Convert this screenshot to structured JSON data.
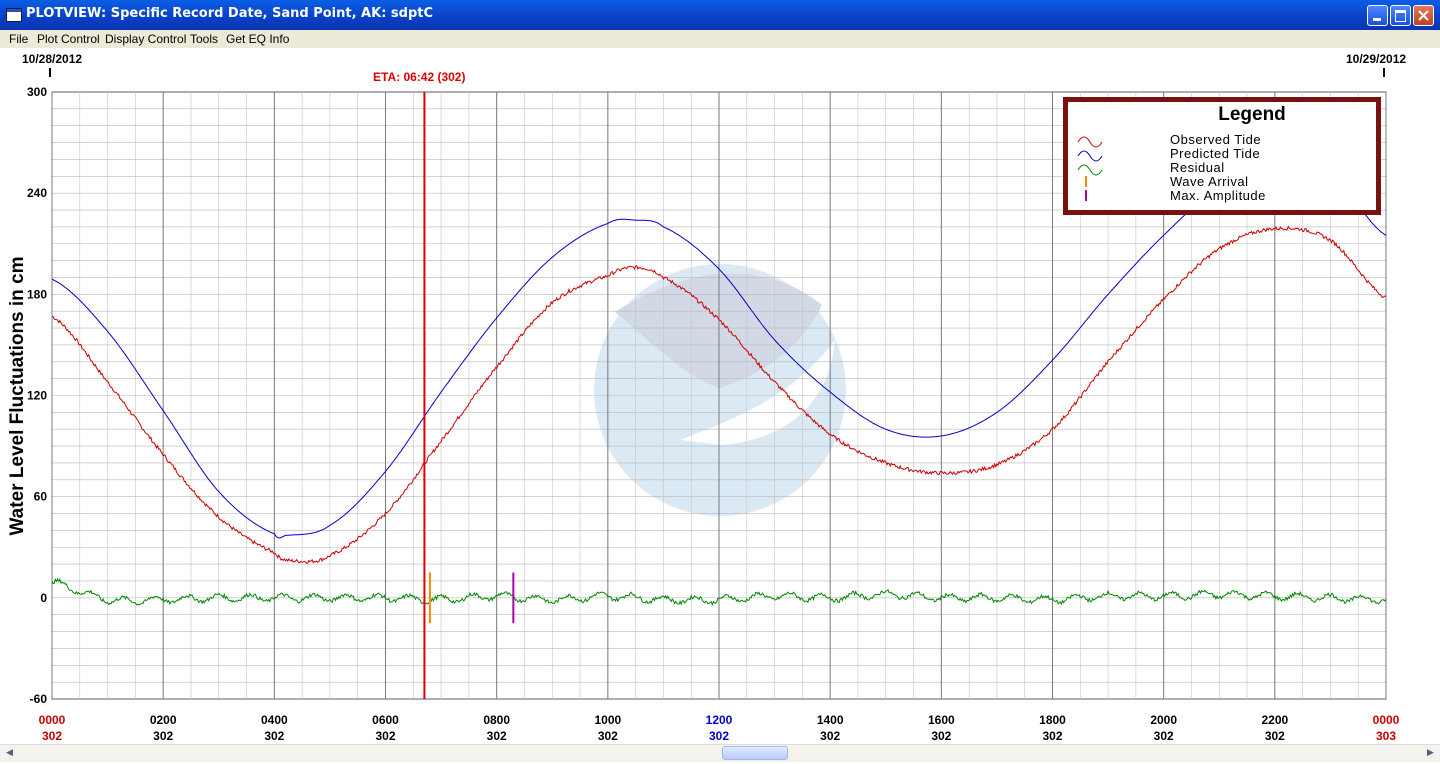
{
  "window": {
    "title": "PLOTVIEW: Specific Record Date, Sand Point, AK: sdptC",
    "colors": {
      "titlebar": "#0a46d6",
      "close": "#d0502c"
    }
  },
  "menu": [
    "File",
    "Plot Control",
    "Display Control",
    "Tools",
    "Get EQ Info"
  ],
  "header": {
    "start_date": "10/28/2012",
    "end_date": "10/29/2012",
    "eta_label": "ETA: 06:42 (302)"
  },
  "legend": {
    "title": "Legend",
    "items": [
      {
        "label": "Observed Tide",
        "color": "#cc0000",
        "icon": "wave-icon"
      },
      {
        "label": "Predicted Tide",
        "color": "#0000cc",
        "icon": "wave-icon"
      },
      {
        "label": "Residual",
        "color": "#008800",
        "icon": "wave-icon"
      },
      {
        "label": "Wave Arrival",
        "color": "#ff8c00",
        "icon": "tick-icon"
      },
      {
        "label": "Max. Amplitude",
        "color": "#aa00aa",
        "icon": "tick-icon"
      }
    ]
  },
  "chart_data": {
    "type": "line",
    "ylabel": "Water Level Fluctuations in cm",
    "ylim": [
      -60,
      300
    ],
    "yticks": [
      300,
      240,
      180,
      120,
      60,
      0,
      -60
    ],
    "xlim_hours": [
      0,
      24
    ],
    "xticks": [
      {
        "hour": "0000",
        "day": "302",
        "color": "#cc0000"
      },
      {
        "hour": "0200",
        "day": "302",
        "color": "#000000"
      },
      {
        "hour": "0400",
        "day": "302",
        "color": "#000000"
      },
      {
        "hour": "0600",
        "day": "302",
        "color": "#000000"
      },
      {
        "hour": "0800",
        "day": "302",
        "color": "#000000"
      },
      {
        "hour": "1000",
        "day": "302",
        "color": "#000000"
      },
      {
        "hour": "1200",
        "day": "302",
        "color": "#0000cc"
      },
      {
        "hour": "1400",
        "day": "302",
        "color": "#000000"
      },
      {
        "hour": "1600",
        "day": "302",
        "color": "#000000"
      },
      {
        "hour": "1800",
        "day": "302",
        "color": "#000000"
      },
      {
        "hour": "2000",
        "day": "302",
        "color": "#000000"
      },
      {
        "hour": "2200",
        "day": "302",
        "color": "#000000"
      },
      {
        "hour": "0000",
        "day": "303",
        "color": "#cc0000"
      }
    ],
    "eta_hour": 6.7,
    "wave_arrival_hour": 6.8,
    "max_amplitude_hour": 8.3,
    "grid": true,
    "legend_position": "top-right",
    "series": [
      {
        "name": "Predicted Tide",
        "color": "#0000cc",
        "x": [
          0,
          1,
          2,
          3,
          4,
          4.2,
          5,
          6,
          7,
          8,
          9,
          10,
          10.5,
          11,
          12,
          13,
          14,
          15,
          16,
          17,
          18,
          19,
          20,
          21,
          22,
          23,
          24
        ],
        "y": [
          189,
          158,
          111,
          63,
          38,
          37,
          43,
          75,
          122,
          166,
          202,
          222,
          224,
          220,
          195,
          153,
          122,
          100,
          96,
          110,
          141,
          180,
          215,
          244,
          259,
          252,
          215
        ]
      },
      {
        "name": "Observed Tide",
        "color": "#cc0000",
        "x": [
          0,
          1,
          2,
          3,
          4,
          4.3,
          5,
          6,
          7,
          8,
          9,
          10,
          10.5,
          11,
          12,
          13,
          14,
          15,
          16,
          17,
          18,
          19,
          20,
          21,
          22,
          23,
          24
        ],
        "y": [
          167,
          128,
          85,
          48,
          27,
          22,
          25,
          50,
          93,
          137,
          175,
          191,
          196,
          190,
          165,
          128,
          97,
          80,
          74,
          79,
          100,
          140,
          177,
          207,
          219,
          212,
          178
        ]
      },
      {
        "name": "Residual",
        "color": "#008800",
        "x": [
          0,
          1,
          2,
          3,
          4,
          5,
          6,
          7,
          8,
          9,
          10,
          11,
          12,
          13,
          14,
          15,
          16,
          17,
          18,
          19,
          20,
          21,
          22,
          23,
          24
        ],
        "y": [
          9,
          -1,
          -1,
          0,
          0,
          0,
          0,
          -1,
          1,
          -1,
          1,
          -1,
          -1,
          1,
          0,
          2,
          0,
          0,
          -1,
          1,
          1,
          2,
          1,
          0,
          -1
        ]
      }
    ]
  }
}
